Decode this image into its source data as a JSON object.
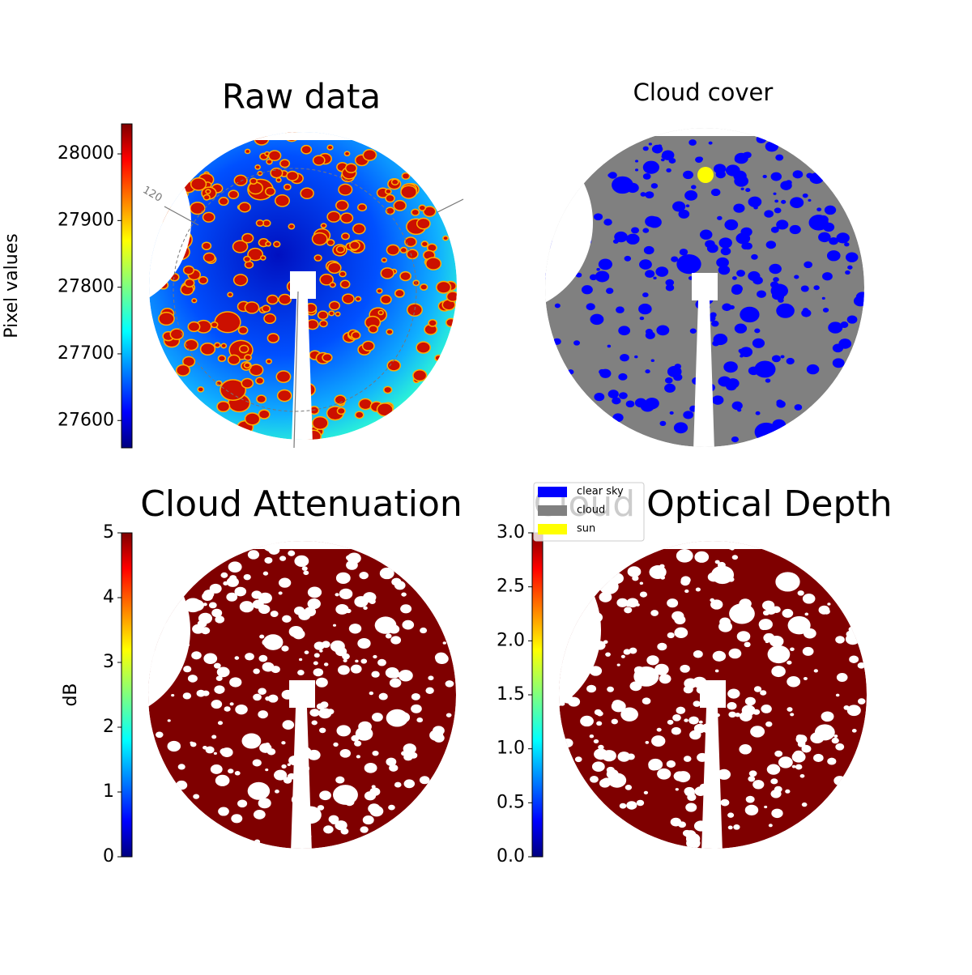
{
  "chart_data": [
    {
      "type": "image",
      "title": "Raw data",
      "colormap": "jet",
      "annotations": [
        "120"
      ],
      "ylabel": "Pixel values",
      "ylim": [
        27559,
        28045
      ],
      "yticks": [
        27600,
        27700,
        27800,
        27900,
        28000
      ]
    },
    {
      "type": "image",
      "title": "Cloud cover",
      "series": [
        {
          "name": "clear sky",
          "color": "#0000ff"
        },
        {
          "name": "cloud",
          "color": "#808080"
        },
        {
          "name": "sun",
          "color": "#ffff00"
        }
      ]
    },
    {
      "type": "image",
      "title": "Cloud Attenuation",
      "colormap": "jet",
      "ylabel": "dB",
      "ylim": [
        0,
        5
      ],
      "yticks": [
        0,
        1,
        2,
        3,
        4,
        5
      ]
    },
    {
      "type": "image",
      "title": "Cloud Optical Depth",
      "colormap": "jet",
      "ylim": [
        0,
        3
      ],
      "yticks": [
        {
          "value": 0,
          "label": "0.0"
        },
        {
          "value": 0.5,
          "label": "0.5"
        },
        {
          "value": 1,
          "label": "1.0"
        },
        {
          "value": 1.5,
          "label": "1.5"
        },
        {
          "value": 2,
          "label": "2.0"
        },
        {
          "value": 2.5,
          "label": "2.5"
        },
        {
          "value": 3,
          "label": "3.0"
        }
      ]
    }
  ]
}
